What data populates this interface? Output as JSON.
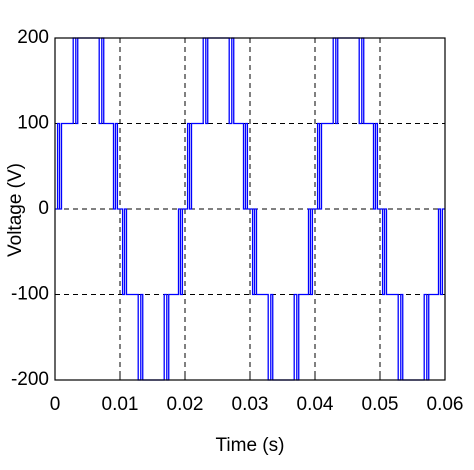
{
  "chart_data": {
    "type": "line",
    "x_label": "Time (s)",
    "y_label": "Voltage (V)",
    "xlim": [
      0,
      0.06
    ],
    "ylim": [
      -200,
      200
    ],
    "xticks": [
      0,
      0.01,
      0.02,
      0.03,
      0.04,
      0.05,
      0.06
    ],
    "yticks": [
      -200,
      -100,
      0,
      100,
      200
    ],
    "grid": true,
    "color": "#0000ff",
    "x": [
      0,
      0.0004,
      0.0004,
      0.0007,
      0.0007,
      0.001,
      0.001,
      0.0028,
      0.0028,
      0.0032,
      0.0032,
      0.0035,
      0.0035,
      0.0068,
      0.0068,
      0.0072,
      0.0072,
      0.0075,
      0.0075,
      0.009,
      0.009,
      0.0093,
      0.0093,
      0.0096,
      0.0096,
      0.01,
      0.0104,
      0.0104,
      0.0107,
      0.0107,
      0.011,
      0.011,
      0.0128,
      0.0128,
      0.0132,
      0.0132,
      0.0135,
      0.0135,
      0.0168,
      0.0168,
      0.0172,
      0.0172,
      0.0175,
      0.0175,
      0.019,
      0.019,
      0.0193,
      0.0193,
      0.0196,
      0.0196,
      0.02,
      0.0204,
      0.0204,
      0.0207,
      0.0207,
      0.021,
      0.021,
      0.0228,
      0.0228,
      0.0232,
      0.0232,
      0.0235,
      0.0235,
      0.0268,
      0.0268,
      0.0272,
      0.0272,
      0.0275,
      0.0275,
      0.029,
      0.029,
      0.0293,
      0.0293,
      0.0296,
      0.0296,
      0.03,
      0.0304,
      0.0304,
      0.0307,
      0.0307,
      0.031,
      0.031,
      0.0328,
      0.0328,
      0.0332,
      0.0332,
      0.0335,
      0.0335,
      0.0368,
      0.0368,
      0.0372,
      0.0372,
      0.0375,
      0.0375,
      0.039,
      0.039,
      0.0393,
      0.0393,
      0.0396,
      0.0396,
      0.04,
      0.0404,
      0.0404,
      0.0407,
      0.0407,
      0.041,
      0.041,
      0.0428,
      0.0428,
      0.0432,
      0.0432,
      0.0435,
      0.0435,
      0.0468,
      0.0468,
      0.0472,
      0.0472,
      0.0475,
      0.0475,
      0.049,
      0.049,
      0.0493,
      0.0493,
      0.0496,
      0.0496,
      0.05,
      0.0504,
      0.0504,
      0.0507,
      0.0507,
      0.051,
      0.051,
      0.0528,
      0.0528,
      0.0532,
      0.0532,
      0.0535,
      0.0535,
      0.0568,
      0.0568,
      0.0572,
      0.0572,
      0.0575,
      0.0575,
      0.059,
      0.059,
      0.0593,
      0.0593,
      0.0596,
      0.0596,
      0.06
    ],
    "values": [
      0,
      0,
      100,
      100,
      0,
      0,
      100,
      100,
      200,
      200,
      100,
      100,
      200,
      200,
      100,
      100,
      200,
      200,
      100,
      100,
      0,
      0,
      100,
      100,
      0,
      0,
      0,
      -100,
      -100,
      0,
      0,
      -100,
      -100,
      -200,
      -200,
      -100,
      -100,
      -200,
      -200,
      -100,
      -100,
      -200,
      -200,
      -100,
      -100,
      0,
      0,
      -100,
      -100,
      0,
      0,
      0,
      100,
      100,
      0,
      0,
      100,
      100,
      200,
      200,
      100,
      100,
      200,
      200,
      100,
      100,
      200,
      200,
      100,
      100,
      0,
      0,
      100,
      100,
      0,
      0,
      0,
      -100,
      -100,
      0,
      0,
      -100,
      -100,
      -200,
      -200,
      -100,
      -100,
      -200,
      -200,
      -100,
      -100,
      -200,
      -200,
      -100,
      -100,
      0,
      0,
      -100,
      -100,
      0,
      0,
      0,
      100,
      100,
      0,
      0,
      100,
      100,
      200,
      200,
      100,
      100,
      200,
      200,
      100,
      100,
      200,
      200,
      100,
      100,
      0,
      0,
      100,
      100,
      0,
      0,
      0,
      -100,
      -100,
      0,
      0,
      -100,
      -100,
      -200,
      -200,
      -100,
      -100,
      -200,
      -200,
      -100,
      -100,
      -200,
      -200,
      -100,
      -100,
      0,
      0,
      -100,
      -100,
      0,
      0
    ]
  }
}
